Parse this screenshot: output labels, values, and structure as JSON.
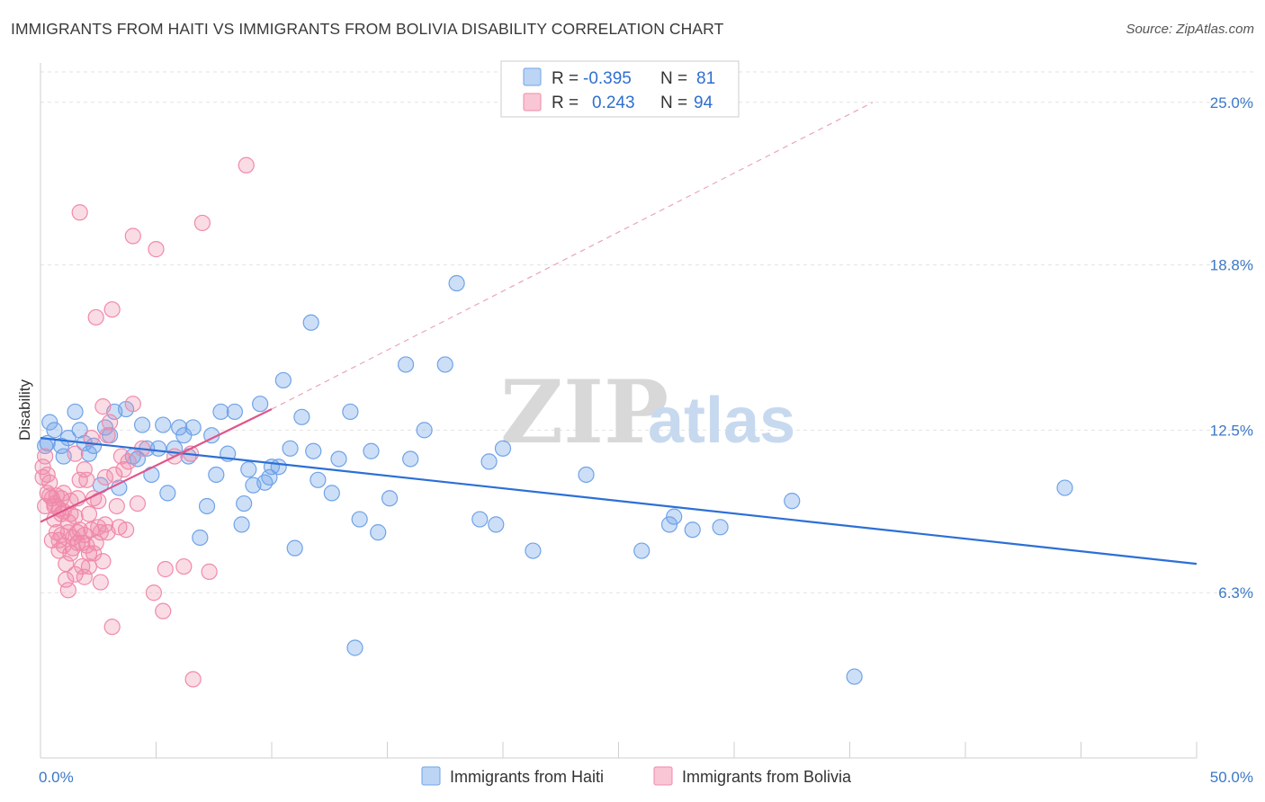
{
  "header": {
    "title": "IMMIGRANTS FROM HAITI VS IMMIGRANTS FROM BOLIVIA DISABILITY CORRELATION CHART",
    "source": "Source: ZipAtlas.com"
  },
  "watermark": {
    "zip": "ZIP",
    "atlas": "atlas"
  },
  "legend": {
    "rows": [
      {
        "r_label": "R =",
        "r_value": "-0.395",
        "n_label": "N =",
        "n_value": "81",
        "color": "#6fa3e8"
      },
      {
        "r_label": "R =",
        "r_value": "0.243",
        "n_label": "N =",
        "n_value": "94",
        "color": "#f08aaa"
      }
    ]
  },
  "bottom_legend": {
    "items": [
      {
        "label": "Immigrants from Haiti",
        "color": "#6fa3e8"
      },
      {
        "label": "Immigrants from Bolivia",
        "color": "#f08aaa"
      }
    ]
  },
  "chart_data": {
    "type": "scatter",
    "title": "IMMIGRANTS FROM HAITI VS IMMIGRANTS FROM BOLIVIA DISABILITY CORRELATION CHART",
    "xlabel": "",
    "ylabel": "Disability",
    "xlim": [
      0,
      50
    ],
    "ylim": [
      0,
      26.5
    ],
    "x_tick_labels": [
      {
        "value": 0,
        "label": "0.0%"
      },
      {
        "value": 50,
        "label": "50.0%"
      }
    ],
    "y_tick_labels": [
      {
        "value": 6.3,
        "label": "6.3%"
      },
      {
        "value": 12.5,
        "label": "12.5%"
      },
      {
        "value": 18.8,
        "label": "18.8%"
      },
      {
        "value": 25.0,
        "label": "25.0%"
      }
    ],
    "grid": true,
    "series": [
      {
        "name": "Immigrants from Haiti",
        "color": "#6fa3e8",
        "trend": {
          "x": [
            0,
            50
          ],
          "y": [
            12.2,
            7.4
          ],
          "dashed_extension": false
        },
        "points": [
          [
            0.3,
            12.0
          ],
          [
            0.4,
            12.8
          ],
          [
            0.6,
            12.5
          ],
          [
            0.9,
            11.9
          ],
          [
            1.0,
            11.5
          ],
          [
            1.2,
            12.2
          ],
          [
            1.5,
            13.2
          ],
          [
            1.7,
            12.5
          ],
          [
            1.9,
            12.0
          ],
          [
            2.1,
            11.6
          ],
          [
            2.3,
            11.9
          ],
          [
            2.6,
            10.4
          ],
          [
            2.8,
            12.6
          ],
          [
            3.0,
            12.3
          ],
          [
            3.2,
            13.2
          ],
          [
            3.4,
            10.3
          ],
          [
            3.7,
            13.3
          ],
          [
            4.0,
            11.5
          ],
          [
            4.2,
            11.4
          ],
          [
            4.4,
            12.7
          ],
          [
            4.6,
            11.8
          ],
          [
            4.8,
            10.8
          ],
          [
            5.1,
            11.8
          ],
          [
            5.3,
            12.7
          ],
          [
            5.5,
            10.1
          ],
          [
            5.8,
            11.8
          ],
          [
            6.0,
            12.6
          ],
          [
            6.2,
            12.3
          ],
          [
            6.4,
            11.5
          ],
          [
            6.6,
            12.6
          ],
          [
            6.9,
            8.4
          ],
          [
            7.2,
            9.6
          ],
          [
            7.4,
            12.3
          ],
          [
            7.6,
            10.8
          ],
          [
            7.8,
            13.2
          ],
          [
            8.1,
            11.6
          ],
          [
            8.4,
            13.2
          ],
          [
            8.7,
            8.9
          ],
          [
            8.8,
            9.7
          ],
          [
            9.0,
            11.0
          ],
          [
            9.2,
            10.4
          ],
          [
            9.5,
            13.5
          ],
          [
            9.7,
            10.5
          ],
          [
            9.9,
            10.7
          ],
          [
            10.0,
            11.1
          ],
          [
            10.3,
            11.1
          ],
          [
            10.5,
            14.4
          ],
          [
            10.8,
            11.8
          ],
          [
            11.0,
            8.0
          ],
          [
            11.3,
            13.0
          ],
          [
            11.7,
            16.6
          ],
          [
            11.8,
            11.7
          ],
          [
            12.0,
            10.6
          ],
          [
            12.6,
            10.1
          ],
          [
            12.9,
            11.4
          ],
          [
            13.4,
            13.2
          ],
          [
            13.6,
            4.2
          ],
          [
            13.8,
            9.1
          ],
          [
            14.3,
            11.7
          ],
          [
            14.6,
            8.6
          ],
          [
            15.1,
            9.9
          ],
          [
            15.8,
            15.0
          ],
          [
            16.0,
            11.4
          ],
          [
            16.6,
            12.5
          ],
          [
            17.5,
            15.0
          ],
          [
            18.0,
            18.1
          ],
          [
            19.0,
            9.1
          ],
          [
            19.4,
            11.3
          ],
          [
            19.7,
            8.9
          ],
          [
            20.0,
            11.8
          ],
          [
            21.3,
            7.9
          ],
          [
            23.6,
            10.8
          ],
          [
            26.0,
            7.9
          ],
          [
            27.2,
            8.9
          ],
          [
            27.4,
            9.2
          ],
          [
            28.2,
            8.7
          ],
          [
            29.4,
            8.8
          ],
          [
            32.5,
            9.8
          ],
          [
            35.2,
            3.1
          ],
          [
            44.3,
            10.3
          ],
          [
            0.2,
            11.9
          ]
        ]
      },
      {
        "name": "Immigrants from Bolivia",
        "color": "#f08aaa",
        "trend": {
          "x": [
            0,
            10
          ],
          "y": [
            9.0,
            13.3
          ],
          "dashed_extension": true,
          "dashed_to": {
            "x": 36,
            "y": 25.0
          }
        },
        "points": [
          [
            0.1,
            10.7
          ],
          [
            0.1,
            11.1
          ],
          [
            0.2,
            9.6
          ],
          [
            0.2,
            11.5
          ],
          [
            0.3,
            10.8
          ],
          [
            0.4,
            10.0
          ],
          [
            0.4,
            10.5
          ],
          [
            0.5,
            9.9
          ],
          [
            0.5,
            8.3
          ],
          [
            0.6,
            9.6
          ],
          [
            0.6,
            9.1
          ],
          [
            0.7,
            10.0
          ],
          [
            0.7,
            8.6
          ],
          [
            0.8,
            9.5
          ],
          [
            0.8,
            8.3
          ],
          [
            0.9,
            9.9
          ],
          [
            0.9,
            9.3
          ],
          [
            1.0,
            9.4
          ],
          [
            1.0,
            8.1
          ],
          [
            1.1,
            7.4
          ],
          [
            1.1,
            6.8
          ],
          [
            1.2,
            6.4
          ],
          [
            1.2,
            9.0
          ],
          [
            1.3,
            9.3
          ],
          [
            1.3,
            7.8
          ],
          [
            1.4,
            8.4
          ],
          [
            1.4,
            8.0
          ],
          [
            1.5,
            11.6
          ],
          [
            1.5,
            7.0
          ],
          [
            1.6,
            8.6
          ],
          [
            1.6,
            8.2
          ],
          [
            1.7,
            8.7
          ],
          [
            1.7,
            10.6
          ],
          [
            1.8,
            7.3
          ],
          [
            1.8,
            8.2
          ],
          [
            1.9,
            11.0
          ],
          [
            1.9,
            6.9
          ],
          [
            2.0,
            8.1
          ],
          [
            2.0,
            10.6
          ],
          [
            2.1,
            7.8
          ],
          [
            2.1,
            7.3
          ],
          [
            2.2,
            12.2
          ],
          [
            2.2,
            8.7
          ],
          [
            2.3,
            9.9
          ],
          [
            2.4,
            8.2
          ],
          [
            2.5,
            8.8
          ],
          [
            2.5,
            9.8
          ],
          [
            2.6,
            8.6
          ],
          [
            2.7,
            7.5
          ],
          [
            2.7,
            13.4
          ],
          [
            2.8,
            10.7
          ],
          [
            2.9,
            8.6
          ],
          [
            3.0,
            12.8
          ],
          [
            3.1,
            5.0
          ],
          [
            3.2,
            10.8
          ],
          [
            3.3,
            9.6
          ],
          [
            3.4,
            8.8
          ],
          [
            3.5,
            11.5
          ],
          [
            3.7,
            8.7
          ],
          [
            3.8,
            11.3
          ],
          [
            4.0,
            13.5
          ],
          [
            4.2,
            9.7
          ],
          [
            4.4,
            11.8
          ],
          [
            4.9,
            6.3
          ],
          [
            5.3,
            5.6
          ],
          [
            5.4,
            7.2
          ],
          [
            5.8,
            11.5
          ],
          [
            6.2,
            7.3
          ],
          [
            6.5,
            11.6
          ],
          [
            6.6,
            3.0
          ],
          [
            7.0,
            20.4
          ],
          [
            7.3,
            7.1
          ],
          [
            8.9,
            22.6
          ],
          [
            1.7,
            20.8
          ],
          [
            4.0,
            19.9
          ],
          [
            5.0,
            19.4
          ],
          [
            2.4,
            16.8
          ],
          [
            3.1,
            17.1
          ],
          [
            1.6,
            9.9
          ],
          [
            1.0,
            10.1
          ],
          [
            0.9,
            8.5
          ],
          [
            1.3,
            9.8
          ],
          [
            1.9,
            8.5
          ],
          [
            2.3,
            7.8
          ],
          [
            2.6,
            6.7
          ],
          [
            2.9,
            12.3
          ],
          [
            1.2,
            8.6
          ],
          [
            0.8,
            7.9
          ],
          [
            0.6,
            9.7
          ],
          [
            0.3,
            10.1
          ],
          [
            1.5,
            9.2
          ],
          [
            2.1,
            9.3
          ],
          [
            2.8,
            8.9
          ],
          [
            3.6,
            11.0
          ]
        ]
      }
    ]
  }
}
